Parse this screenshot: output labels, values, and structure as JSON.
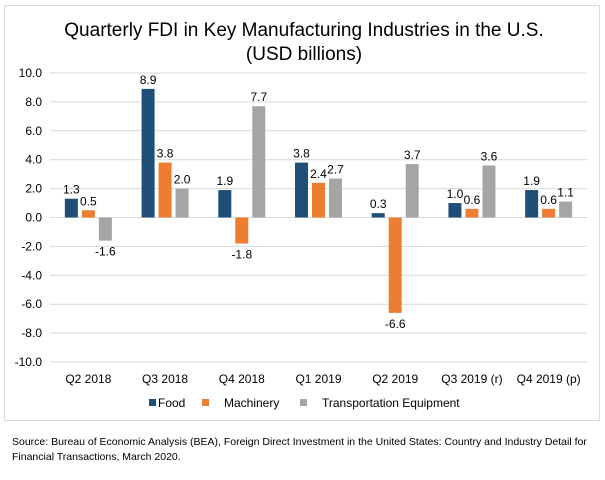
{
  "chart_data": {
    "type": "bar",
    "title": "Quarterly FDI in Key Manufacturing Industries in the U.S.",
    "subtitle": "(USD billions)",
    "xlabel": "",
    "ylabel": "",
    "categories": [
      "Q2 2018",
      "Q3 2018",
      "Q4 2018",
      "Q1 2019",
      "Q2 2019",
      "Q3 2019 (r)",
      "Q4 2019 (p)"
    ],
    "series": [
      {
        "name": "Food",
        "color": "#1f4e79",
        "values": [
          1.3,
          8.9,
          1.9,
          3.8,
          0.3,
          1.0,
          1.9
        ]
      },
      {
        "name": "Machinery",
        "color": "#ed7d31",
        "values": [
          0.5,
          3.8,
          -1.8,
          2.4,
          -6.6,
          0.6,
          0.6
        ]
      },
      {
        "name": "Transportation Equipment",
        "color": "#a5a5a5",
        "values": [
          -1.6,
          2.0,
          7.7,
          2.7,
          3.7,
          3.6,
          1.1
        ]
      }
    ],
    "ylim": [
      -10,
      10
    ],
    "yticks": [
      "10.0",
      "8.0",
      "6.0",
      "4.0",
      "2.0",
      "0.0",
      "-2.0",
      "-4.0",
      "-6.0",
      "-8.0",
      "-10.0"
    ],
    "ytick_values": [
      10,
      8,
      6,
      4,
      2,
      0,
      -2,
      -4,
      -6,
      -8,
      -10
    ],
    "grid": true,
    "legend_position": "bottom"
  },
  "source_note": "Source: Bureau of Economic Analysis (BEA), Foreign Direct Investment in the United States: Country and Industry Detail for Financial Transactions, March 2020."
}
